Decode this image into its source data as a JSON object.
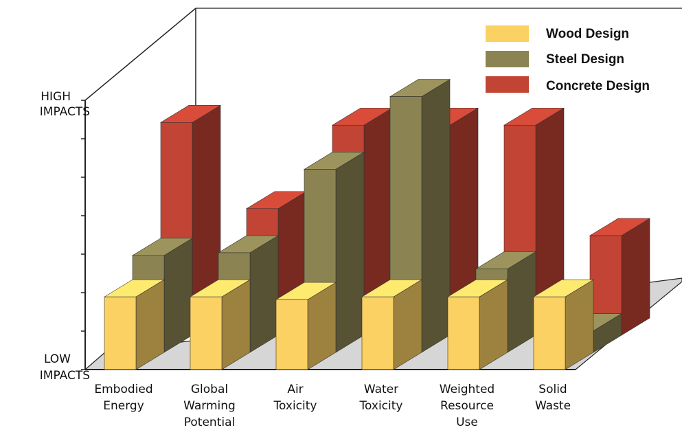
{
  "chart_data": {
    "type": "bar",
    "style": "3d-grouped",
    "categories": [
      [
        "Embodied",
        "Energy"
      ],
      [
        "Global",
        "Warming",
        "Potential"
      ],
      [
        "Air",
        "Toxicity"
      ],
      [
        "Water",
        "Toxicity"
      ],
      [
        "Weighted",
        "Resource",
        "Use"
      ],
      [
        "Solid",
        "Waste"
      ]
    ],
    "series": [
      {
        "name": "Wood Design",
        "color": "#fcd164",
        "values": [
          0.27,
          0.27,
          0.26,
          0.27,
          0.27,
          0.27
        ]
      },
      {
        "name": "Steel Design",
        "color": "#8b8452",
        "values": [
          0.36,
          0.37,
          0.68,
          0.95,
          0.31,
          0.08
        ]
      },
      {
        "name": "Concrete Design",
        "color": "#c24434",
        "values": [
          0.79,
          0.47,
          0.78,
          0.78,
          0.78,
          0.37
        ]
      }
    ],
    "ylabel_high": [
      "HIGH",
      "IMPACTS"
    ],
    "ylabel_low": [
      "LOW",
      "IMPACTS"
    ],
    "ylim": [
      0,
      1
    ],
    "grid": false,
    "legend_position": "top-right"
  }
}
